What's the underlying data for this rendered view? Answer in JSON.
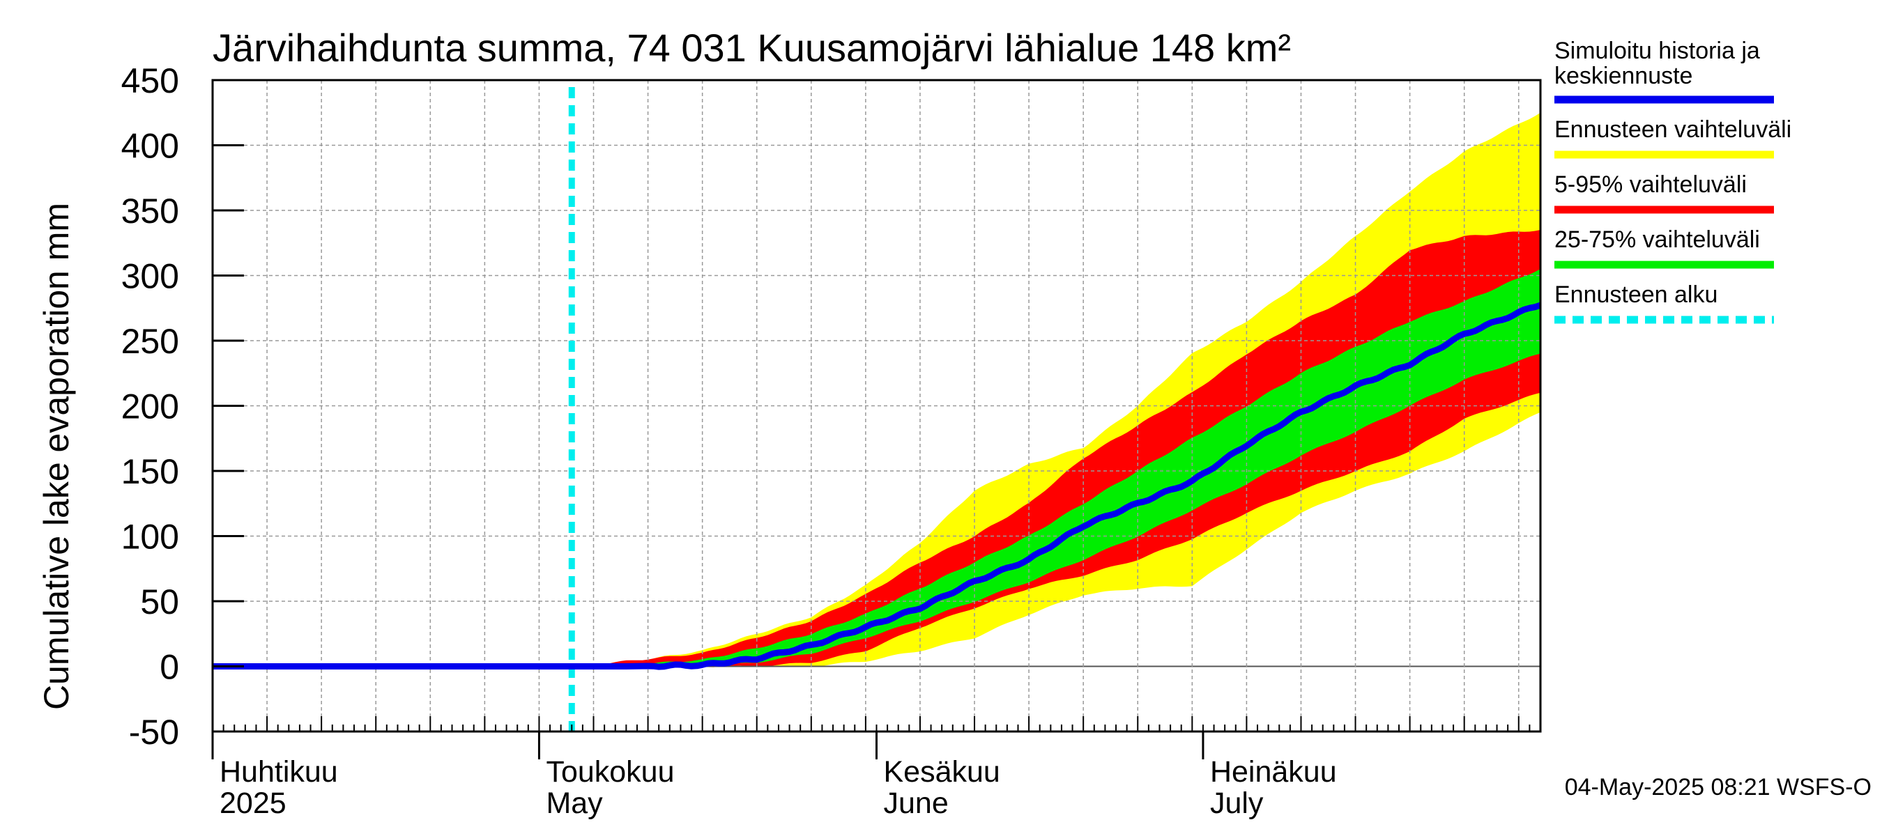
{
  "chart_data": {
    "type": "area",
    "title": "Järvihaihdunta summa, 74 031 Kuusamojärvi lähialue 148 km²",
    "ylabel": "Cumulative lake evaporation   mm",
    "xlabel": "",
    "ylim": [
      -50,
      450
    ],
    "yticks": [
      -50,
      0,
      50,
      100,
      150,
      200,
      250,
      300,
      350,
      400,
      450
    ],
    "xlim_days": [
      0,
      122
    ],
    "forecast_start_day": 33,
    "month_labels": [
      {
        "day": 0,
        "fi": "Huhtikuu",
        "en": "2025"
      },
      {
        "day": 30,
        "fi": "Toukokuu",
        "en": "May"
      },
      {
        "day": 61,
        "fi": "Kesäkuu",
        "en": "June"
      },
      {
        "day": 91,
        "fi": "Heinäkuu",
        "en": "July"
      }
    ],
    "days": [
      0,
      33,
      38,
      45,
      50,
      55,
      60,
      65,
      70,
      75,
      80,
      85,
      90,
      95,
      100,
      105,
      110,
      115,
      122
    ],
    "series": [
      {
        "name": "Ennusteen vaihteluväli",
        "role": "band_min",
        "values": [
          0,
          0,
          0,
          0,
          0,
          0,
          4,
          12,
          22,
          40,
          55,
          60,
          62,
          90,
          118,
          135,
          148,
          165,
          195
        ]
      },
      {
        "name": "Ennusteen vaihteluväli",
        "role": "band_max",
        "values": [
          0,
          0,
          3,
          12,
          25,
          38,
          62,
          95,
          135,
          155,
          168,
          200,
          240,
          265,
          295,
          330,
          365,
          395,
          425
        ]
      },
      {
        "name": "5-95% vaihteluväli",
        "role": "band_min",
        "values": [
          0,
          0,
          0,
          0,
          0,
          3,
          12,
          30,
          45,
          60,
          70,
          82,
          98,
          118,
          135,
          150,
          165,
          190,
          210
        ]
      },
      {
        "name": "5-95% vaihteluväli",
        "role": "band_max",
        "values": [
          0,
          0,
          4,
          10,
          22,
          35,
          55,
          80,
          100,
          125,
          160,
          185,
          210,
          240,
          265,
          285,
          320,
          330,
          335
        ]
      },
      {
        "name": "25-75% vaihteluväli",
        "role": "band_min",
        "values": [
          0,
          0,
          0,
          0,
          3,
          10,
          22,
          35,
          50,
          65,
          82,
          100,
          120,
          140,
          162,
          180,
          200,
          220,
          240
        ]
      },
      {
        "name": "25-75% vaihteluväli",
        "role": "band_max",
        "values": [
          0,
          0,
          1,
          5,
          14,
          25,
          40,
          60,
          80,
          100,
          125,
          150,
          175,
          200,
          225,
          245,
          265,
          280,
          305
        ]
      },
      {
        "name": "Simuloitu historia ja keskiennuste",
        "role": "line",
        "values": [
          0,
          0,
          0,
          1,
          6,
          16,
          30,
          45,
          65,
          82,
          108,
          125,
          142,
          170,
          195,
          215,
          232,
          255,
          278
        ]
      }
    ]
  },
  "legend": [
    {
      "label": "Simuloitu historia ja keskiennuste",
      "color": "#0000ee",
      "style": "solid"
    },
    {
      "label": "Ennusteen vaihteluväli",
      "color": "#ffff00",
      "style": "solid"
    },
    {
      "label": "5-95% vaihteluväli",
      "color": "#ff0000",
      "style": "solid"
    },
    {
      "label": "25-75% vaihteluväli",
      "color": "#00ee00",
      "style": "solid"
    },
    {
      "label": "Ennusteen alku",
      "color": "#00eeee",
      "style": "dashed"
    }
  ],
  "footer": "04-May-2025 08:21 WSFS-O",
  "colors": {
    "background": "#ffffff",
    "grid": "#999999",
    "axis": "#000000"
  }
}
